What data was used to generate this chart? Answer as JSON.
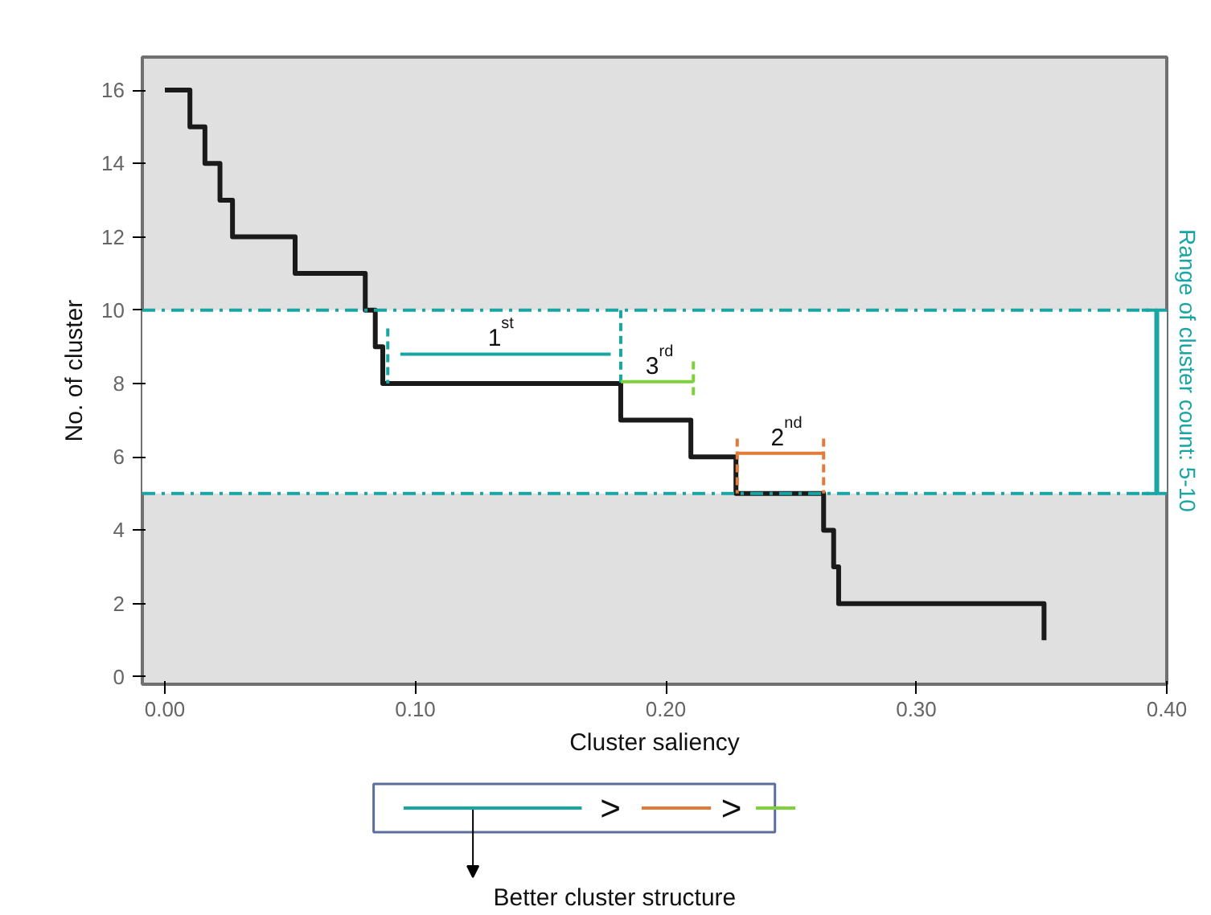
{
  "chart_data": {
    "type": "step",
    "xlabel": "Cluster saliency",
    "ylabel": "No. of cluster",
    "xlim": [
      -0.009,
      0.4
    ],
    "ylim": [
      -0.2,
      16.9
    ],
    "xticks": [
      {
        "value": 0,
        "label": "0.00"
      },
      {
        "value": 0.1,
        "label": "0.10"
      },
      {
        "value": 0.2,
        "label": "0.20"
      },
      {
        "value": 0.3,
        "label": "0.30"
      },
      {
        "value": 0.4,
        "label": "0.40"
      }
    ],
    "yticks": [
      0,
      2,
      4,
      6,
      8,
      10,
      12,
      14,
      16
    ],
    "grid": false,
    "series": [
      {
        "color": "#1a1a1a",
        "x": [
          0,
          0.01,
          0.016,
          0.022,
          0.027,
          0.052,
          0.08,
          0.084,
          0.087,
          0.182,
          0.21,
          0.228,
          0.263,
          0.267,
          0.269,
          0.351
        ],
        "values": [
          16,
          15,
          14,
          13,
          12,
          11,
          10,
          9,
          8,
          7,
          6,
          5,
          4,
          3,
          2,
          1
        ]
      },
      {
        "type": "line",
        "color": "#1aa5a5",
        "x": [
          0.094,
          0.178
        ],
        "values": [
          8.8,
          8.8
        ]
      },
      {
        "type": "line",
        "color": "#1aa5a5",
        "line_style": "dashed",
        "x": [
          0.089,
          0.089
        ],
        "values": [
          9.5,
          8
        ]
      },
      {
        "type": "line",
        "color": "#1aa5a5",
        "line_style": "dashed",
        "x": [
          0.182,
          0.182
        ],
        "values": [
          10,
          8
        ]
      },
      {
        "type": "line",
        "color": "#7fd13b",
        "x": [
          0.182,
          0.211
        ],
        "values": [
          8.05,
          8.05
        ]
      },
      {
        "type": "line",
        "color": "#7fd13b",
        "line_style": "dashed",
        "x": [
          0.211,
          0.211
        ],
        "values": [
          8.6,
          7.6
        ]
      },
      {
        "type": "line",
        "color": "#e07b39",
        "x": [
          0.2285,
          0.263
        ],
        "values": [
          6.1,
          6.1
        ]
      },
      {
        "type": "line",
        "color": "#e07b39",
        "line_style": "dashed",
        "x": [
          0.2285,
          0.2285
        ],
        "values": [
          6.5,
          5
        ]
      },
      {
        "type": "line",
        "color": "#e07b39",
        "line_style": "dashed",
        "x": [
          0.263,
          0.263
        ],
        "values": [
          6.5,
          5
        ]
      }
    ],
    "bands": [
      {
        "axis": "y",
        "from": 5,
        "to": 10,
        "color": "#ffffff",
        "label": "Range of cluster count: 5-10"
      }
    ],
    "ref_lines": [
      {
        "axis": "y",
        "value": 10,
        "color": "#1aa5a5",
        "line_style": "dashed"
      },
      {
        "axis": "y",
        "value": 5,
        "color": "#1aa5a5",
        "line_style": "dashed"
      }
    ],
    "annotations": [
      {
        "text": "1$^{st}$",
        "x": 0.133,
        "y": 8.8
      },
      {
        "text": "3$^{rd}$",
        "x": 0.196,
        "y": 8.05
      },
      {
        "text": "2$^{nd}$",
        "x": 0.246,
        "y": 6.1
      },
      ">",
      ">",
      "Better cluster structure"
    ]
  }
}
